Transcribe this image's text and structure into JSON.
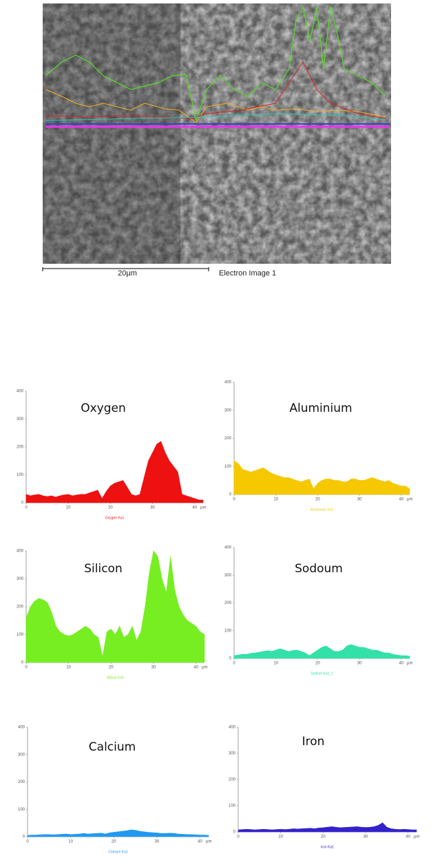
{
  "scan_image": {
    "scale_label": "20µm",
    "caption": "Electron Image 1"
  },
  "chart_data": [
    {
      "type": "area",
      "title": "Oxygen",
      "x_label": "µm",
      "xlim": [
        0,
        42
      ],
      "ylim": [
        0,
        400
      ],
      "xticks": [
        0,
        10,
        20,
        30,
        40
      ],
      "yticks": [
        0,
        100,
        200,
        300,
        400
      ],
      "x": [
        0,
        1,
        2,
        3,
        4,
        5,
        6,
        7,
        8,
        9,
        10,
        11,
        12,
        13,
        14,
        15,
        16,
        17,
        18,
        19,
        20,
        21,
        22,
        23,
        24,
        25,
        26,
        27,
        28,
        29,
        30,
        31,
        32,
        33,
        34,
        35,
        36,
        37,
        38,
        39,
        40,
        41,
        42
      ],
      "series": [
        {
          "name": "Oxygen Ka1",
          "color": "#ee1111",
          "values": [
            30,
            25,
            28,
            30,
            25,
            22,
            25,
            20,
            25,
            28,
            30,
            25,
            28,
            30,
            30,
            35,
            40,
            45,
            15,
            40,
            60,
            70,
            75,
            80,
            55,
            30,
            25,
            30,
            90,
            150,
            180,
            210,
            220,
            180,
            150,
            130,
            110,
            30,
            25,
            20,
            15,
            10,
            10
          ]
        }
      ]
    },
    {
      "type": "area",
      "title": "Aluminium",
      "x_label": "µm",
      "xlim": [
        0,
        42
      ],
      "ylim": [
        0,
        400
      ],
      "xticks": [
        0,
        10,
        20,
        30,
        40
      ],
      "yticks": [
        0,
        100,
        200,
        300,
        400
      ],
      "x": [
        0,
        1,
        2,
        3,
        4,
        5,
        6,
        7,
        8,
        9,
        10,
        11,
        12,
        13,
        14,
        15,
        16,
        17,
        18,
        19,
        20,
        21,
        22,
        23,
        24,
        25,
        26,
        27,
        28,
        29,
        30,
        31,
        32,
        33,
        34,
        35,
        36,
        37,
        38,
        39,
        40,
        41,
        42
      ],
      "series": [
        {
          "name": "Aluminium Ka1",
          "color": "#f5c800",
          "values": [
            120,
            110,
            90,
            85,
            80,
            85,
            90,
            95,
            85,
            75,
            70,
            65,
            60,
            60,
            55,
            50,
            45,
            50,
            55,
            20,
            40,
            50,
            55,
            55,
            50,
            50,
            45,
            45,
            55,
            55,
            50,
            50,
            55,
            60,
            55,
            50,
            45,
            50,
            40,
            35,
            30,
            30,
            20
          ]
        }
      ]
    },
    {
      "type": "area",
      "title": "Silicon",
      "x_label": "µm",
      "xlim": [
        0,
        42
      ],
      "ylim": [
        0,
        400
      ],
      "xticks": [
        0,
        10,
        20,
        30,
        40
      ],
      "yticks": [
        0,
        100,
        200,
        300,
        400
      ],
      "x": [
        0,
        1,
        2,
        3,
        4,
        5,
        6,
        7,
        8,
        9,
        10,
        11,
        12,
        13,
        14,
        15,
        16,
        17,
        18,
        19,
        20,
        21,
        22,
        23,
        24,
        25,
        26,
        27,
        28,
        29,
        30,
        31,
        32,
        33,
        34,
        35,
        36,
        37,
        38,
        39,
        40,
        41,
        42
      ],
      "series": [
        {
          "name": "Silicon Ka1",
          "color": "#77ee22",
          "values": [
            160,
            200,
            220,
            230,
            225,
            215,
            180,
            130,
            110,
            100,
            95,
            100,
            110,
            120,
            130,
            120,
            100,
            90,
            20,
            110,
            120,
            100,
            130,
            90,
            100,
            130,
            80,
            110,
            200,
            320,
            400,
            380,
            300,
            250,
            380,
            260,
            200,
            170,
            150,
            140,
            130,
            110,
            100
          ]
        }
      ]
    },
    {
      "type": "area",
      "title": "Sodoum",
      "x_label": "µm",
      "xlim": [
        0,
        42
      ],
      "ylim": [
        0,
        400
      ],
      "xticks": [
        0,
        10,
        20,
        30,
        40
      ],
      "yticks": [
        0,
        100,
        200,
        300,
        400
      ],
      "x": [
        0,
        1,
        2,
        3,
        4,
        5,
        6,
        7,
        8,
        9,
        10,
        11,
        12,
        13,
        14,
        15,
        16,
        17,
        18,
        19,
        20,
        21,
        22,
        23,
        24,
        25,
        26,
        27,
        28,
        29,
        30,
        31,
        32,
        33,
        34,
        35,
        36,
        37,
        38,
        39,
        40,
        41,
        42
      ],
      "series": [
        {
          "name": "Sodium Ka1_2",
          "color": "#33e0a8",
          "values": [
            10,
            12,
            15,
            15,
            18,
            20,
            22,
            25,
            28,
            25,
            30,
            35,
            30,
            25,
            28,
            30,
            25,
            20,
            10,
            20,
            30,
            40,
            45,
            35,
            25,
            25,
            30,
            45,
            50,
            45,
            40,
            40,
            35,
            30,
            30,
            25,
            20,
            20,
            15,
            12,
            10,
            10,
            8
          ]
        }
      ]
    },
    {
      "type": "area",
      "title": "Calcium",
      "x_label": "µm",
      "xlim": [
        0,
        42
      ],
      "ylim": [
        0,
        400
      ],
      "xticks": [
        0,
        10,
        20,
        30,
        40
      ],
      "yticks": [
        0,
        100,
        200,
        300,
        400
      ],
      "x": [
        0,
        1,
        2,
        3,
        4,
        5,
        6,
        7,
        8,
        9,
        10,
        11,
        12,
        13,
        14,
        15,
        16,
        17,
        18,
        19,
        20,
        21,
        22,
        23,
        24,
        25,
        26,
        27,
        28,
        29,
        30,
        31,
        32,
        33,
        34,
        35,
        36,
        37,
        38,
        39,
        40,
        41,
        42
      ],
      "series": [
        {
          "name": "Calcium Ka1",
          "color": "#2299ee",
          "values": [
            5,
            6,
            6,
            7,
            8,
            8,
            7,
            8,
            9,
            10,
            8,
            9,
            10,
            12,
            10,
            11,
            12,
            13,
            10,
            14,
            16,
            18,
            20,
            22,
            25,
            24,
            20,
            18,
            16,
            15,
            14,
            12,
            12,
            13,
            12,
            10,
            9,
            8,
            8,
            7,
            6,
            6,
            5
          ]
        }
      ]
    },
    {
      "type": "area",
      "title": "Iron",
      "x_label": "µm",
      "xlim": [
        0,
        42
      ],
      "ylim": [
        0,
        400
      ],
      "xticks": [
        0,
        10,
        20,
        30,
        40
      ],
      "yticks": [
        0,
        100,
        200,
        300,
        400
      ],
      "x": [
        0,
        1,
        2,
        3,
        4,
        5,
        6,
        7,
        8,
        9,
        10,
        11,
        12,
        13,
        14,
        15,
        16,
        17,
        18,
        19,
        20,
        21,
        22,
        23,
        24,
        25,
        26,
        27,
        28,
        29,
        30,
        31,
        32,
        33,
        34,
        35,
        36,
        37,
        38,
        39,
        40,
        41,
        42
      ],
      "series": [
        {
          "name": "Iron Ka1",
          "color": "#3322cc",
          "values": [
            8,
            9,
            10,
            9,
            8,
            9,
            10,
            9,
            8,
            9,
            10,
            9,
            10,
            12,
            11,
            12,
            13,
            14,
            12,
            15,
            16,
            18,
            20,
            18,
            16,
            17,
            18,
            19,
            20,
            18,
            17,
            18,
            20,
            25,
            35,
            18,
            12,
            10,
            9,
            10,
            9,
            8,
            8
          ]
        }
      ]
    }
  ]
}
